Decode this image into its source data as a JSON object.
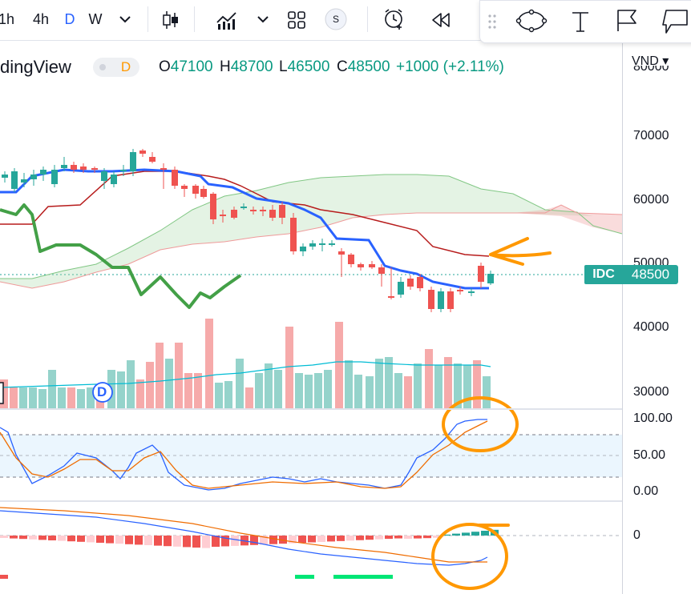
{
  "toolbar": {
    "intervals": [
      "1h",
      "4h",
      "D",
      "W"
    ],
    "active_interval": "D",
    "compare_symbol": "S"
  },
  "legend": {
    "title": "dingView",
    "interval_badge": "D",
    "open_label": "O",
    "open": "47100",
    "high_label": "H",
    "high": "48700",
    "low_label": "L",
    "low": "46500",
    "close_label": "C",
    "close": "48500",
    "change": "+1000 (+2.11%)"
  },
  "price_axis": {
    "currency": "VND",
    "currency_caret": "▾",
    "labels": [
      "70000",
      "60000",
      "50000",
      "40000",
      "30000"
    ],
    "top_partial": "80000"
  },
  "last_price": {
    "symbol": "IDC",
    "value": "48500"
  },
  "stoch_axis": {
    "labels": [
      "100.00",
      "50.00",
      "0.00"
    ]
  },
  "macd_axis": {
    "labels": [
      "0"
    ]
  },
  "events": {
    "dividend_marker": "D"
  },
  "colors": {
    "up": "#26a69a",
    "down": "#ef5350",
    "kijun": "#2962ff",
    "tenkan": "#b71c1c",
    "chikou": "#43a047",
    "annotation": "#ff9800",
    "accent": "#2962ff"
  },
  "icons": [
    "candles-icon",
    "indicators-icon",
    "chevron-down-icon",
    "templates-icon",
    "compare-icon",
    "alert-icon",
    "replay-icon",
    "drag-handle-icon",
    "ellipse-tool-icon",
    "text-tool-icon",
    "flag-tool-icon",
    "callout-tool-icon"
  ]
}
